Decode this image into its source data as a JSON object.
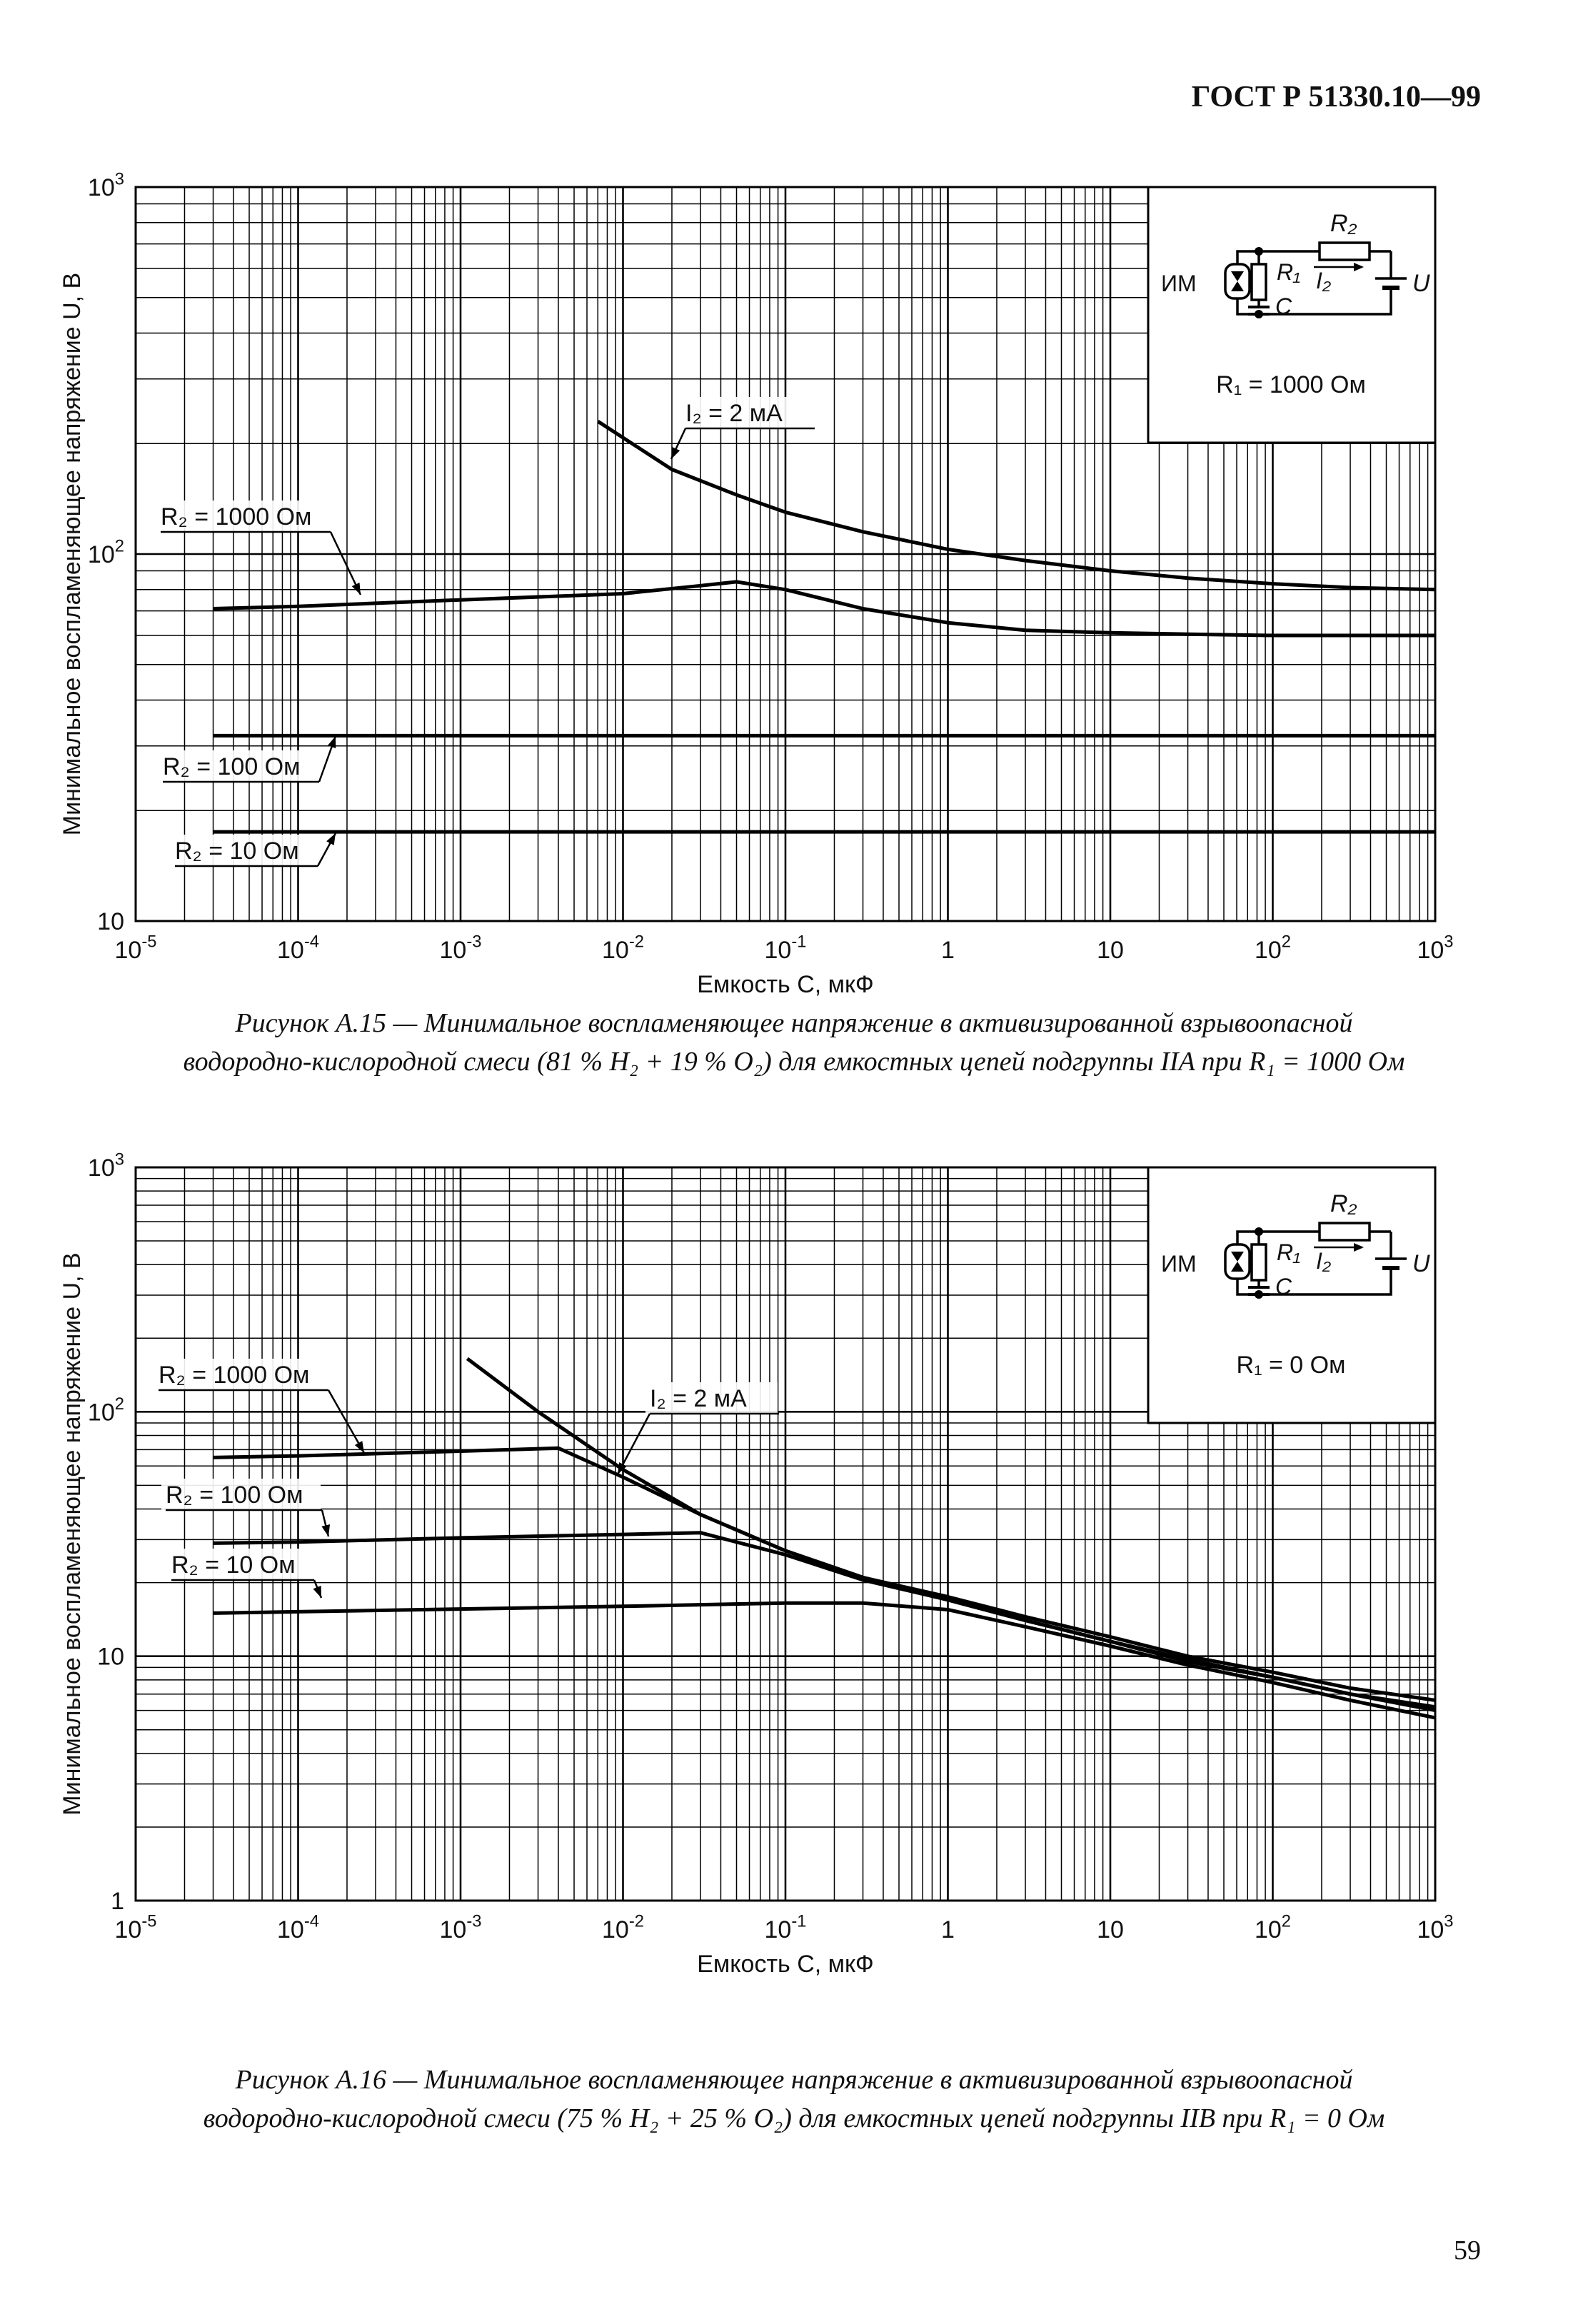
{
  "header": "ГОСТ Р 51330.10—99",
  "page_number": "59",
  "chart_data": [
    {
      "type": "line",
      "x_scale": "log",
      "y_scale": "log",
      "xlim": [
        1e-05,
        1000
      ],
      "ylim": [
        10,
        1000
      ],
      "x_ticks": [
        1e-05,
        0.0001,
        0.001,
        0.01,
        0.1,
        1,
        10,
        100,
        1000
      ],
      "x_tick_labels": [
        [
          "10",
          "-5"
        ],
        [
          "10",
          "-4"
        ],
        [
          "10",
          "-3"
        ],
        [
          "10",
          "-2"
        ],
        [
          "10",
          "-1"
        ],
        [
          "1",
          ""
        ],
        [
          "10",
          ""
        ],
        [
          "10",
          "2"
        ],
        [
          "10",
          "3"
        ]
      ],
      "y_ticks": [
        10,
        100,
        1000
      ],
      "y_tick_labels": [
        [
          "10",
          ""
        ],
        [
          "10",
          "2"
        ],
        [
          "10",
          "3"
        ]
      ],
      "xlabel": "Емкость C, мкФ",
      "ylabel": "Минимальное воспламеняющее напряжение U, В",
      "grid": true,
      "caption_lines": [
        "Рисунок А.15 — Минимальное воспламеняющее напряжение в активизированной взрывоопасной",
        "водородно-кислородной смеси (81 % H₂ + 19 % O₂) для емкостных цепей подгруппы IIA при R₁ = 1000 Ом"
      ],
      "inset": {
        "circuit": "ИМ-C-R1-R2-U",
        "im": "ИМ",
        "r1": "R₁",
        "r2": "R₂",
        "c": "C",
        "i2": "I₂",
        "u": "U",
        "condition": "R₁ = 1000 Ом"
      },
      "series": [
        {
          "name": "I₂ = 2 мА",
          "x": [
            0.007,
            0.02,
            0.05,
            0.1,
            0.3,
            1,
            3,
            10,
            30,
            100,
            300,
            1000
          ],
          "y": [
            230,
            170,
            145,
            130,
            115,
            103,
            96,
            90,
            86,
            83,
            81,
            80
          ]
        },
        {
          "name": "R₂ = 1000 Ом",
          "x": [
            3e-05,
            0.0001,
            0.001,
            0.01,
            0.03,
            0.05,
            0.1,
            0.3,
            1,
            3,
            10,
            30,
            100,
            300,
            1000
          ],
          "y": [
            71,
            72,
            75,
            78,
            82,
            84,
            80,
            71,
            65,
            62,
            61,
            60.5,
            60,
            60,
            60
          ]
        },
        {
          "name": "R₂ = 100 Ом",
          "x": [
            3e-05,
            1000
          ],
          "y": [
            32,
            32
          ]
        },
        {
          "name": "R₂ = 10 Ом",
          "x": [
            3e-05,
            1000
          ],
          "y": [
            17.5,
            17.5
          ]
        }
      ],
      "labels": [
        {
          "text": "I₂ = 2 мА",
          "series": 0
        },
        {
          "text": "R₂ = 1000 Ом",
          "series": 1
        },
        {
          "text": "R₂ = 100 Ом",
          "series": 2
        },
        {
          "text": "R₂ = 10 Ом",
          "series": 3
        }
      ]
    },
    {
      "type": "line",
      "x_scale": "log",
      "y_scale": "log",
      "xlim": [
        1e-05,
        1000
      ],
      "ylim": [
        1,
        1000
      ],
      "x_ticks": [
        1e-05,
        0.0001,
        0.001,
        0.01,
        0.1,
        1,
        10,
        100,
        1000
      ],
      "x_tick_labels": [
        [
          "10",
          "-5"
        ],
        [
          "10",
          "-4"
        ],
        [
          "10",
          "-3"
        ],
        [
          "10",
          "-2"
        ],
        [
          "10",
          "-1"
        ],
        [
          "1",
          ""
        ],
        [
          "10",
          ""
        ],
        [
          "10",
          "2"
        ],
        [
          "10",
          "3"
        ]
      ],
      "y_ticks": [
        1,
        10,
        100,
        1000
      ],
      "y_tick_labels": [
        [
          "1",
          ""
        ],
        [
          "10",
          ""
        ],
        [
          "10",
          "2"
        ],
        [
          "10",
          "3"
        ]
      ],
      "xlabel": "Емкость C, мкФ",
      "ylabel": "Минимальное воспламеняющее напряжение U, В",
      "grid": true,
      "caption_lines": [
        "Рисунок А.16 — Минимальное воспламеняющее напряжение в активизированной взрывоопасной",
        "водородно-кислородной смеси (75 % H₂ + 25 % O₂) для емкостных цепей подгруппы IIB при R₁ = 0 Ом"
      ],
      "inset": {
        "circuit": "ИМ-C-R1-R2-U",
        "im": "ИМ",
        "r1": "R₁",
        "r2": "R₂",
        "c": "C",
        "i2": "I₂",
        "u": "U",
        "condition": "R₁ = 0 Ом"
      },
      "series": [
        {
          "name": "I₂ = 2 мА",
          "x": [
            0.0011,
            0.003,
            0.01,
            0.03,
            0.1,
            0.3,
            1,
            3,
            10,
            30,
            100,
            300,
            1000
          ],
          "y": [
            165,
            100,
            58,
            38,
            27,
            21,
            17,
            14,
            11.5,
            9.5,
            8.2,
            7,
            6.2
          ]
        },
        {
          "name": "R₂ = 1000 Ом",
          "x": [
            3e-05,
            0.0001,
            0.001,
            0.004,
            0.01,
            0.03,
            0.1,
            0.3,
            1,
            3,
            10,
            30,
            100,
            300,
            1000
          ],
          "y": [
            65,
            66,
            69,
            71,
            54,
            38,
            27,
            21,
            17.5,
            14.5,
            12,
            10,
            8.6,
            7.4,
            6.6
          ]
        },
        {
          "name": "R₂ = 100 Ом",
          "x": [
            3e-05,
            0.0001,
            0.001,
            0.01,
            0.03,
            0.1,
            0.3,
            1,
            3,
            10,
            30,
            100,
            300,
            1000
          ],
          "y": [
            29,
            29.3,
            30.5,
            31.5,
            32,
            26,
            20.5,
            17,
            14,
            11.5,
            9.7,
            8.2,
            7,
            6
          ]
        },
        {
          "name": "R₂ = 10 Ом",
          "x": [
            3e-05,
            0.0001,
            0.001,
            0.01,
            0.1,
            0.3,
            1,
            3,
            10,
            30,
            100,
            300,
            1000
          ],
          "y": [
            15,
            15.2,
            15.6,
            16,
            16.5,
            16.5,
            15.5,
            13.2,
            11,
            9.2,
            7.8,
            6.6,
            5.6
          ]
        }
      ],
      "labels": [
        {
          "text": "I₂ = 2 мА",
          "series": 0
        },
        {
          "text": "R₂ = 1000 Ом",
          "series": 1
        },
        {
          "text": "R₂ = 100 Ом",
          "series": 2
        },
        {
          "text": "R₂ = 10 Ом",
          "series": 3
        }
      ]
    }
  ]
}
